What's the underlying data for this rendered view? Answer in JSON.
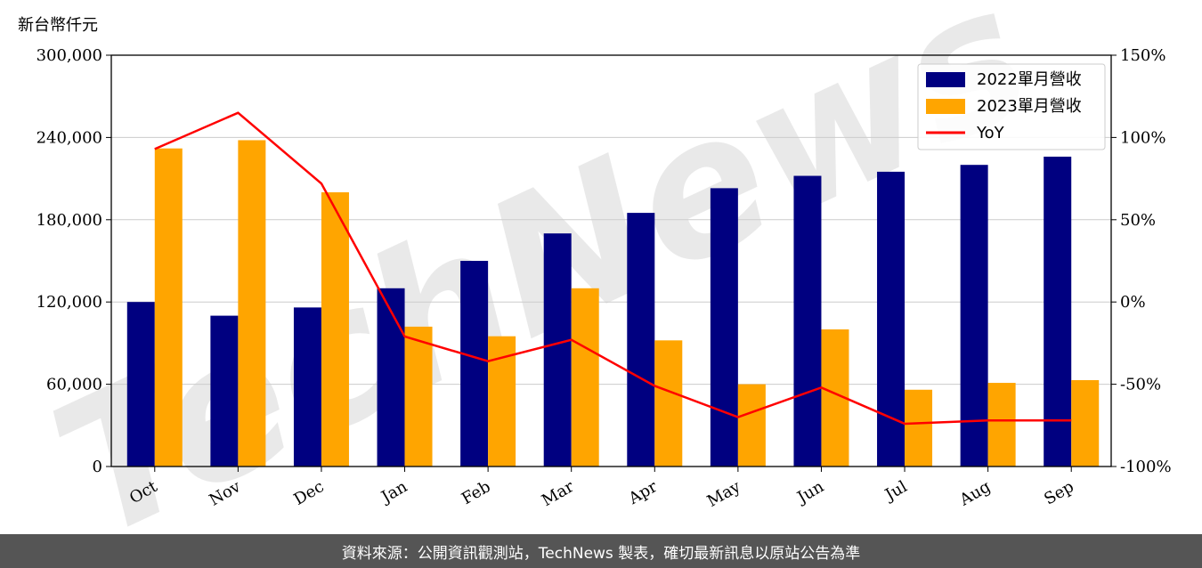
{
  "chart_data": {
    "type": "bar",
    "y_unit_label": "新台幣仟元",
    "categories": [
      "Oct",
      "Nov",
      "Dec",
      "Jan",
      "Feb",
      "Mar",
      "Apr",
      "May",
      "Jun",
      "Jul",
      "Aug",
      "Sep"
    ],
    "series": [
      {
        "name": "2022單月營收",
        "type": "bar",
        "color": "#000080",
        "values": [
          120000,
          110000,
          116000,
          130000,
          150000,
          170000,
          185000,
          203000,
          212000,
          215000,
          220000,
          226000
        ]
      },
      {
        "name": "2023單月營收",
        "type": "bar",
        "color": "#FFA500",
        "values": [
          232000,
          238000,
          200000,
          102000,
          95000,
          130000,
          92000,
          60000,
          100000,
          56000,
          61000,
          63000
        ]
      },
      {
        "name": "YoY",
        "type": "line",
        "axis": "right",
        "color": "#FF0000",
        "values": [
          93,
          115,
          72,
          -21,
          -36,
          -23,
          -51,
          -70,
          -52,
          -74,
          -72,
          -72
        ]
      }
    ],
    "ylim": [
      0,
      300000
    ],
    "yticks": [
      "0",
      "60,000",
      "120,000",
      "180,000",
      "240,000",
      "300,000"
    ],
    "ytick_values": [
      0,
      60000,
      120000,
      180000,
      240000,
      300000
    ],
    "y2lim": [
      -100,
      150
    ],
    "y2ticks": [
      "-100%",
      "-50%",
      "0%",
      "50%",
      "100%",
      "150%"
    ],
    "y2tick_values": [
      -100,
      -50,
      0,
      50,
      100,
      150
    ],
    "grid": "horizontal",
    "legend_position": "top-right",
    "watermark": "TechNews"
  },
  "footer": {
    "text": "資料來源：公開資訊觀測站，TechNews 製表，確切最新訊息以原站公告為準"
  }
}
